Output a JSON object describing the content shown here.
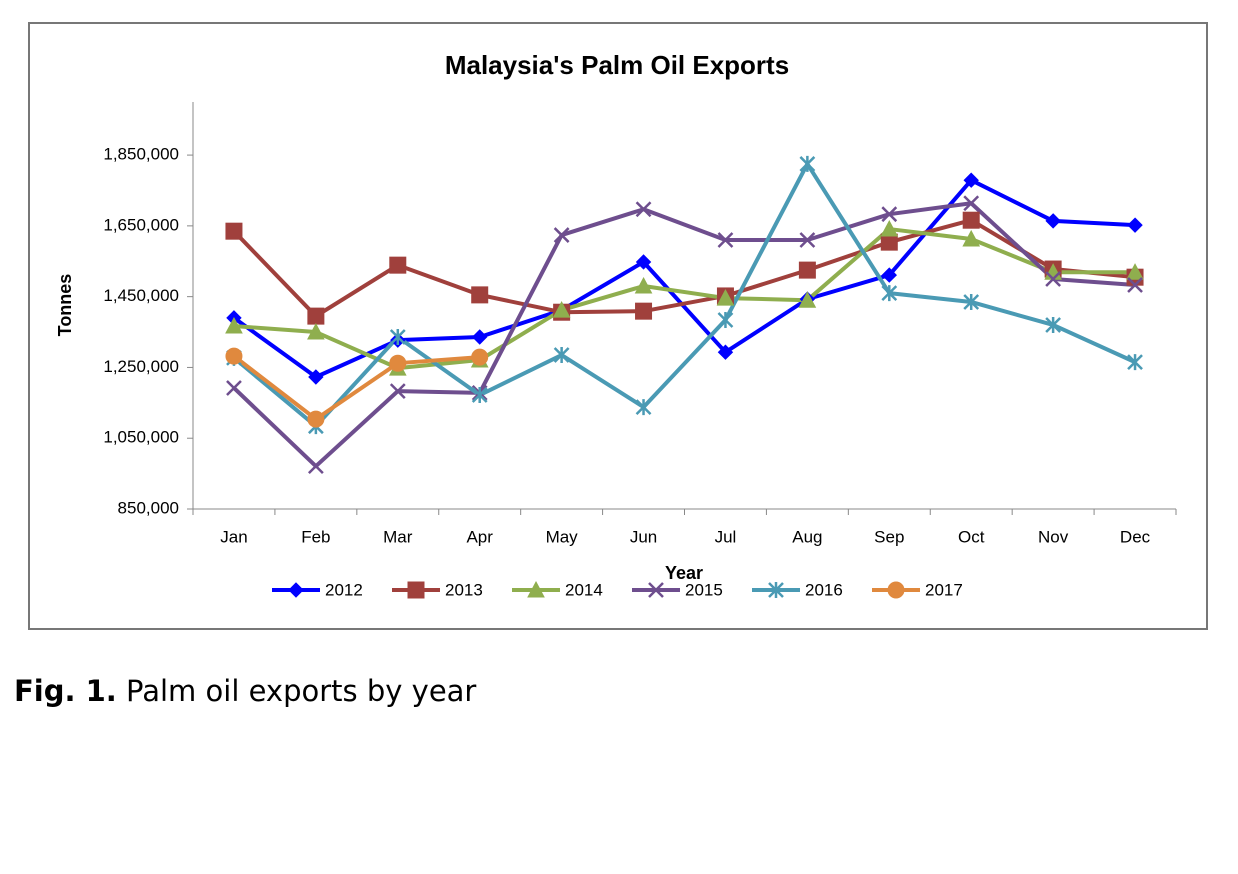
{
  "chart_data": {
    "type": "line",
    "title": "Malaysia's Palm Oil Exports",
    "x_label": "Year",
    "y_label": "Tonnes",
    "categories": [
      "Jan",
      "Feb",
      "Mar",
      "Apr",
      "May",
      "Jun",
      "Jul",
      "Aug",
      "Sep",
      "Oct",
      "Nov",
      "Dec"
    ],
    "series": [
      {
        "name": "2012",
        "color": "#0000ff",
        "marker": "diamond",
        "values": [
          1390000,
          1223000,
          1327000,
          1336000,
          1412000,
          1548000,
          1293000,
          1443000,
          1511000,
          1779000,
          1664000,
          1652000
        ]
      },
      {
        "name": "2013",
        "color": "#a0403c",
        "marker": "square",
        "values": [
          1635000,
          1395000,
          1539000,
          1455000,
          1406000,
          1409000,
          1452000,
          1525000,
          1604000,
          1666000,
          1528000,
          1505000
        ]
      },
      {
        "name": "2014",
        "color": "#8fae4e",
        "marker": "triangle",
        "values": [
          1367000,
          1350000,
          1248000,
          1271000,
          1412000,
          1480000,
          1446000,
          1440000,
          1641000,
          1613000,
          1519000,
          1519000
        ]
      },
      {
        "name": "2015",
        "color": "#6e4e8e",
        "marker": "x",
        "values": [
          1192000,
          971000,
          1183000,
          1178000,
          1624000,
          1697000,
          1610000,
          1610000,
          1683000,
          1714000,
          1500000,
          1483000
        ]
      },
      {
        "name": "2016",
        "color": "#4a9ab4",
        "marker": "asterisk",
        "values": [
          1277000,
          1084000,
          1336000,
          1172000,
          1285000,
          1138000,
          1384000,
          1825000,
          1460000,
          1435000,
          1370000,
          1265000
        ]
      },
      {
        "name": "2017",
        "color": "#e0893e",
        "marker": "circle",
        "values": [
          1282000,
          1104000,
          1262000,
          1279000,
          null,
          null,
          null,
          null,
          null,
          null,
          null,
          null
        ]
      }
    ],
    "ylim": [
      850000,
      2000000
    ],
    "yticks": [
      {
        "value": 850000,
        "label": "850,000"
      },
      {
        "value": 1050000,
        "label": "1,050,000"
      },
      {
        "value": 1250000,
        "label": "1,250,000"
      },
      {
        "value": 1450000,
        "label": "1,450,000"
      },
      {
        "value": 1650000,
        "label": "1,650,000"
      },
      {
        "value": 1850000,
        "label": "1,850,000"
      }
    ],
    "grid": false,
    "legend": "bottom"
  },
  "caption": {
    "label": "Fig. 1.",
    "text": "Palm oil exports by year"
  }
}
